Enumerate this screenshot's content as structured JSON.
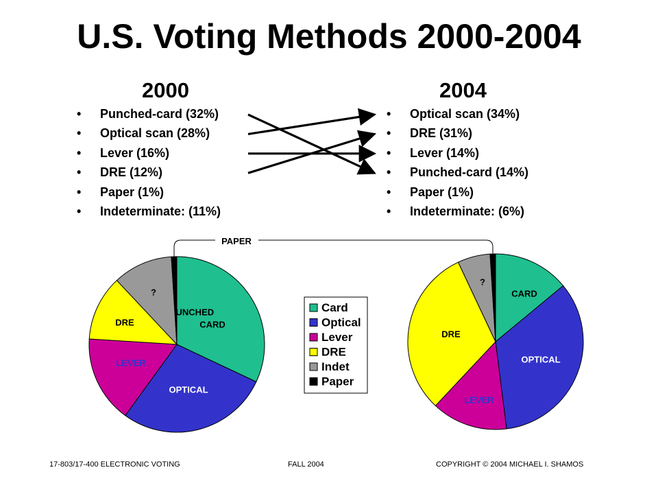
{
  "title": "U.S. Voting Methods 2000-2004",
  "footer": {
    "left": "17-803/17-400 ELECTRONIC VOTING",
    "center": "FALL 2004",
    "right": "COPYRIGHT © 2004 MICHAEL I. SHAMOS"
  },
  "colors": {
    "Card": "#1fbf8f",
    "Optical": "#3333cc",
    "Lever": "#cc0099",
    "DRE": "#ffff00",
    "Indet": "#999999",
    "Paper": "#000000"
  },
  "years": [
    {
      "label": "2000",
      "items": [
        "Punched-card (32%)",
        "Optical scan (28%)",
        "Lever (16%)",
        "DRE (12%)",
        "Paper (1%)",
        "Indeterminate: (11%)"
      ]
    },
    {
      "label": "2004",
      "items": [
        "Optical scan (34%)",
        "DRE (31%)",
        "Lever (14%)",
        "Punched-card (14%)",
        "Paper (1%)",
        "Indeterminate: (6%)"
      ]
    }
  ],
  "paper_label": "PAPER",
  "chart_data": [
    {
      "type": "pie",
      "slices": [
        {
          "name": "Card",
          "label": "PUNCHED CARD",
          "value": 32,
          "label_color": "#000000"
        },
        {
          "name": "Optical",
          "label": "OPTICAL",
          "value": 28,
          "label_color": "#ffffff"
        },
        {
          "name": "Lever",
          "label": "LEVER",
          "value": 16,
          "label_color": "#3333cc"
        },
        {
          "name": "DRE",
          "label": "DRE",
          "value": 12,
          "label_color": "#000000"
        },
        {
          "name": "Indet",
          "label": "?",
          "value": 11,
          "label_color": "#000000"
        },
        {
          "name": "Paper",
          "label": "",
          "value": 1,
          "label_color": "#000000"
        }
      ]
    },
    {
      "type": "pie",
      "slices": [
        {
          "name": "Card",
          "label": "CARD",
          "value": 14,
          "label_color": "#000000"
        },
        {
          "name": "Optical",
          "label": "OPTICAL",
          "value": 34,
          "label_color": "#ffffff"
        },
        {
          "name": "Lever",
          "label": "LEVER",
          "value": 14,
          "label_color": "#3333cc"
        },
        {
          "name": "DRE",
          "label": "DRE",
          "value": 31,
          "label_color": "#000000"
        },
        {
          "name": "Indet",
          "label": "?",
          "value": 6,
          "label_color": "#000000"
        },
        {
          "name": "Paper",
          "label": "",
          "value": 1,
          "label_color": "#000000"
        }
      ]
    }
  ],
  "legend": {
    "placement": "center",
    "entries": [
      "Card",
      "Optical",
      "Lever",
      "DRE",
      "Indet",
      "Paper"
    ]
  },
  "transitions": [
    {
      "from": 0,
      "to": 3
    },
    {
      "from": 1,
      "to": 0
    },
    {
      "from": 2,
      "to": 2
    },
    {
      "from": 3,
      "to": 1
    }
  ]
}
